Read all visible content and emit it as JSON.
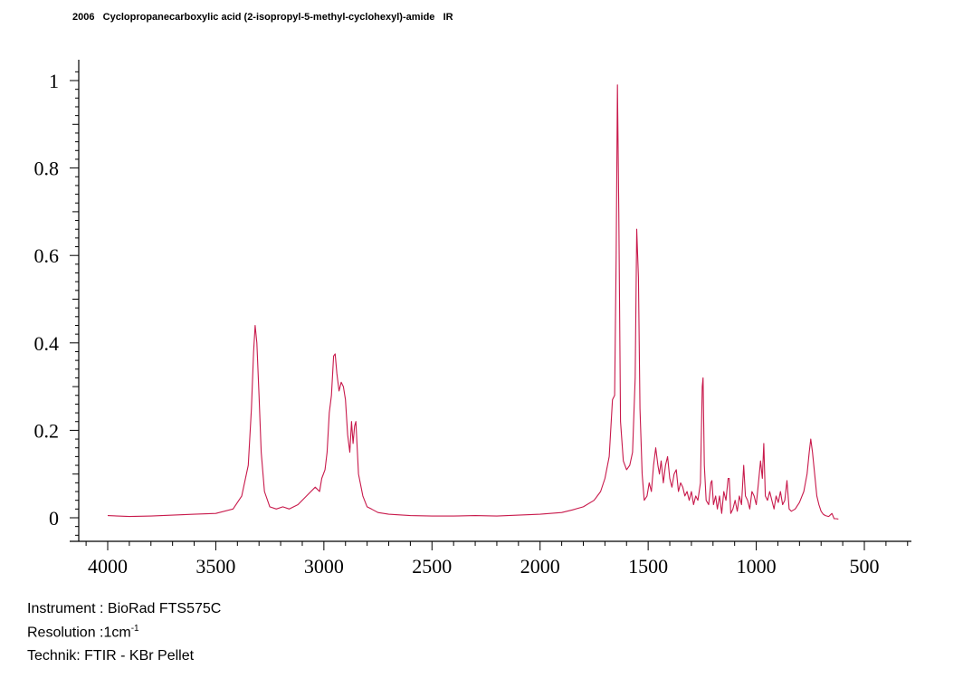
{
  "header": {
    "title": "2006   Cyclopropanecarboxylic acid (2-isopropyl-5-methyl-cyclohexyl)-amide   IR"
  },
  "info": {
    "instrument": "Instrument : BioRad FTS575C",
    "resolution_prefix": "Resolution :1cm",
    "resolution_exp": "-1",
    "technique": "Technik: FTIR - KBr Pellet"
  },
  "colors": {
    "spectrum": "#c8194b",
    "axis": "#000000"
  },
  "chart_data": {
    "type": "line",
    "title": "",
    "xlabel": "",
    "ylabel": "",
    "xlim": [
      4100,
      300
    ],
    "ylim": [
      -0.05,
      1.03
    ],
    "x_ticks": [
      4000,
      3500,
      3000,
      2500,
      2000,
      1500,
      1000,
      500
    ],
    "x_tick_labels": [
      "4000",
      "3500",
      "3000",
      "2500",
      "2000",
      "1500",
      "1000",
      "500"
    ],
    "y_ticks": [
      0,
      0.2,
      0.4,
      0.6,
      0.8,
      1
    ],
    "y_tick_labels": [
      "0",
      "0.2",
      "0.4",
      "0.6",
      "0.8",
      "1"
    ],
    "grid": false,
    "series": [
      {
        "points": [
          [
            4000,
            0.005
          ],
          [
            3900,
            0.003
          ],
          [
            3800,
            0.004
          ],
          [
            3700,
            0.006
          ],
          [
            3600,
            0.008
          ],
          [
            3500,
            0.01
          ],
          [
            3420,
            0.02
          ],
          [
            3380,
            0.05
          ],
          [
            3350,
            0.12
          ],
          [
            3335,
            0.25
          ],
          [
            3325,
            0.38
          ],
          [
            3318,
            0.44
          ],
          [
            3310,
            0.4
          ],
          [
            3300,
            0.28
          ],
          [
            3290,
            0.15
          ],
          [
            3275,
            0.06
          ],
          [
            3250,
            0.025
          ],
          [
            3220,
            0.02
          ],
          [
            3190,
            0.025
          ],
          [
            3160,
            0.02
          ],
          [
            3120,
            0.03
          ],
          [
            3080,
            0.05
          ],
          [
            3060,
            0.06
          ],
          [
            3040,
            0.07
          ],
          [
            3020,
            0.06
          ],
          [
            3010,
            0.09
          ],
          [
            2995,
            0.11
          ],
          [
            2985,
            0.15
          ],
          [
            2975,
            0.24
          ],
          [
            2965,
            0.28
          ],
          [
            2955,
            0.37
          ],
          [
            2948,
            0.375
          ],
          [
            2940,
            0.33
          ],
          [
            2930,
            0.29
          ],
          [
            2920,
            0.31
          ],
          [
            2910,
            0.3
          ],
          [
            2900,
            0.27
          ],
          [
            2890,
            0.19
          ],
          [
            2880,
            0.15
          ],
          [
            2872,
            0.22
          ],
          [
            2865,
            0.17
          ],
          [
            2858,
            0.21
          ],
          [
            2852,
            0.22
          ],
          [
            2845,
            0.15
          ],
          [
            2840,
            0.1
          ],
          [
            2820,
            0.05
          ],
          [
            2800,
            0.025
          ],
          [
            2780,
            0.02
          ],
          [
            2750,
            0.012
          ],
          [
            2700,
            0.008
          ],
          [
            2600,
            0.005
          ],
          [
            2500,
            0.004
          ],
          [
            2400,
            0.004
          ],
          [
            2300,
            0.005
          ],
          [
            2200,
            0.004
          ],
          [
            2100,
            0.006
          ],
          [
            2000,
            0.008
          ],
          [
            1900,
            0.012
          ],
          [
            1850,
            0.018
          ],
          [
            1800,
            0.025
          ],
          [
            1750,
            0.04
          ],
          [
            1720,
            0.06
          ],
          [
            1700,
            0.09
          ],
          [
            1680,
            0.14
          ],
          [
            1665,
            0.27
          ],
          [
            1655,
            0.28
          ],
          [
            1648,
            0.6
          ],
          [
            1642,
            0.99
          ],
          [
            1636,
            0.7
          ],
          [
            1628,
            0.22
          ],
          [
            1615,
            0.13
          ],
          [
            1600,
            0.11
          ],
          [
            1585,
            0.12
          ],
          [
            1572,
            0.15
          ],
          [
            1560,
            0.32
          ],
          [
            1553,
            0.66
          ],
          [
            1545,
            0.55
          ],
          [
            1538,
            0.25
          ],
          [
            1528,
            0.1
          ],
          [
            1518,
            0.04
          ],
          [
            1505,
            0.05
          ],
          [
            1495,
            0.08
          ],
          [
            1485,
            0.06
          ],
          [
            1475,
            0.12
          ],
          [
            1465,
            0.16
          ],
          [
            1455,
            0.12
          ],
          [
            1448,
            0.1
          ],
          [
            1440,
            0.13
          ],
          [
            1430,
            0.08
          ],
          [
            1420,
            0.12
          ],
          [
            1410,
            0.14
          ],
          [
            1400,
            0.09
          ],
          [
            1390,
            0.07
          ],
          [
            1380,
            0.1
          ],
          [
            1370,
            0.11
          ],
          [
            1360,
            0.06
          ],
          [
            1350,
            0.08
          ],
          [
            1340,
            0.07
          ],
          [
            1330,
            0.05
          ],
          [
            1320,
            0.06
          ],
          [
            1310,
            0.04
          ],
          [
            1300,
            0.06
          ],
          [
            1290,
            0.03
          ],
          [
            1280,
            0.05
          ],
          [
            1270,
            0.04
          ],
          [
            1258,
            0.08
          ],
          [
            1250,
            0.3
          ],
          [
            1246,
            0.32
          ],
          [
            1240,
            0.12
          ],
          [
            1232,
            0.04
          ],
          [
            1220,
            0.03
          ],
          [
            1210,
            0.08
          ],
          [
            1205,
            0.085
          ],
          [
            1198,
            0.03
          ],
          [
            1188,
            0.05
          ],
          [
            1180,
            0.02
          ],
          [
            1170,
            0.05
          ],
          [
            1160,
            0.01
          ],
          [
            1150,
            0.06
          ],
          [
            1140,
            0.04
          ],
          [
            1130,
            0.09
          ],
          [
            1125,
            0.09
          ],
          [
            1118,
            0.01
          ],
          [
            1108,
            0.02
          ],
          [
            1098,
            0.04
          ],
          [
            1088,
            0.015
          ],
          [
            1078,
            0.05
          ],
          [
            1068,
            0.03
          ],
          [
            1058,
            0.12
          ],
          [
            1050,
            0.05
          ],
          [
            1040,
            0.04
          ],
          [
            1030,
            0.02
          ],
          [
            1020,
            0.06
          ],
          [
            1010,
            0.05
          ],
          [
            1000,
            0.03
          ],
          [
            990,
            0.08
          ],
          [
            980,
            0.13
          ],
          [
            972,
            0.09
          ],
          [
            965,
            0.17
          ],
          [
            958,
            0.05
          ],
          [
            948,
            0.04
          ],
          [
            938,
            0.06
          ],
          [
            928,
            0.04
          ],
          [
            918,
            0.02
          ],
          [
            908,
            0.05
          ],
          [
            898,
            0.035
          ],
          [
            888,
            0.06
          ],
          [
            878,
            0.03
          ],
          [
            868,
            0.04
          ],
          [
            858,
            0.085
          ],
          [
            848,
            0.02
          ],
          [
            838,
            0.015
          ],
          [
            820,
            0.02
          ],
          [
            800,
            0.035
          ],
          [
            780,
            0.06
          ],
          [
            765,
            0.1
          ],
          [
            755,
            0.15
          ],
          [
            748,
            0.18
          ],
          [
            740,
            0.15
          ],
          [
            730,
            0.1
          ],
          [
            720,
            0.05
          ],
          [
            710,
            0.03
          ],
          [
            700,
            0.015
          ],
          [
            690,
            0.008
          ],
          [
            680,
            0.005
          ],
          [
            665,
            0.003
          ],
          [
            650,
            0.01
          ],
          [
            640,
            -0.002
          ],
          [
            630,
            -0.002
          ],
          [
            620,
            -0.003
          ]
        ]
      }
    ]
  }
}
